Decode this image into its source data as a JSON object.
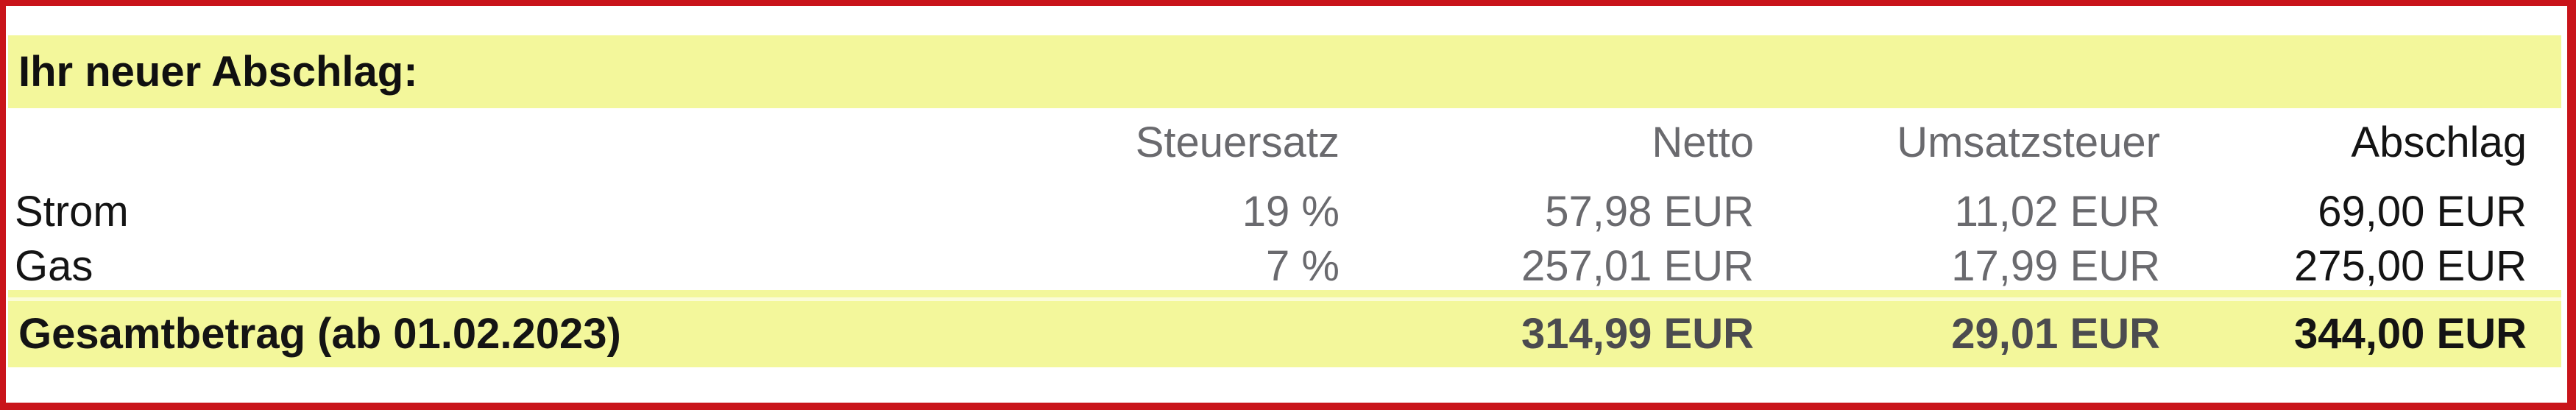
{
  "section": {
    "title": "Ihr neuer Abschlag:"
  },
  "table": {
    "columns": [
      "Steuersatz",
      "Netto",
      "Umsatzsteuer",
      "Abschlag"
    ],
    "rows": [
      {
        "label": "Strom",
        "steuersatz": "19 %",
        "netto": "57,98 EUR",
        "umsatzsteuer": "11,02 EUR",
        "abschlag": "69,00 EUR"
      },
      {
        "label": "Gas",
        "steuersatz": "7 %",
        "netto": "257,01 EUR",
        "umsatzsteuer": "17,99 EUR",
        "abschlag": "275,00 EUR"
      }
    ],
    "total": {
      "label": "Gesamtbetrag (ab 01.02.2023)",
      "netto": "314,99 EUR",
      "umsatzsteuer": "29,01 EUR",
      "abschlag": "344,00 EUR"
    }
  },
  "colors": {
    "border_red": "#c9141a",
    "highlight_yellow": "#f3f79b",
    "header_text_gray": "#6a6a6e",
    "total_text_gray": "#4b4b4f",
    "text_black": "#141414"
  }
}
